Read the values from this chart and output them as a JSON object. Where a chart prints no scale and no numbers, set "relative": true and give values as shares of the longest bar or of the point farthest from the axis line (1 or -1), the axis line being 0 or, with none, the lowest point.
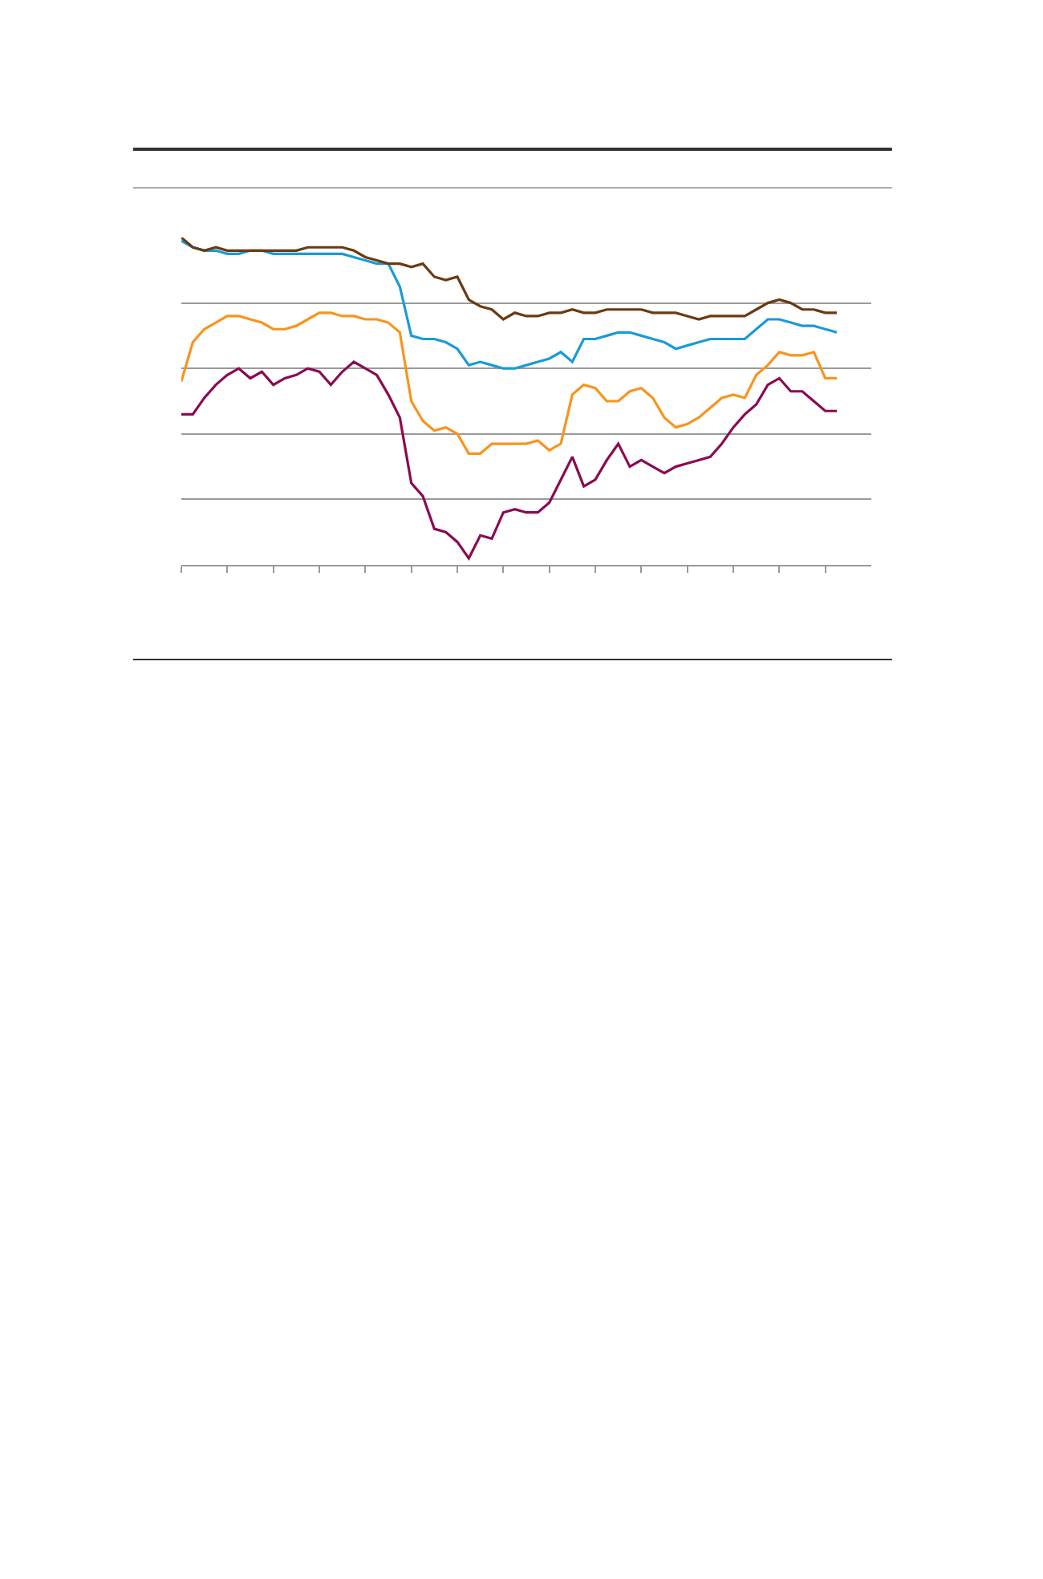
{
  "chart_data": {
    "type": "line",
    "relative": true,
    "grid": "y",
    "marker": "none",
    "line_style": "solid",
    "categories": [
      null,
      null,
      null,
      null,
      null,
      null,
      null,
      null,
      null,
      null,
      null,
      null,
      null,
      null,
      null,
      null,
      null,
      null,
      null,
      null,
      null,
      null,
      null,
      null,
      null,
      null,
      null,
      null,
      null,
      null,
      null,
      null,
      null,
      null,
      null,
      null,
      null,
      null,
      null,
      null,
      null,
      null,
      null,
      null,
      null,
      null,
      null,
      null,
      null,
      null,
      null,
      null,
      null,
      null,
      null,
      null,
      null,
      null
    ],
    "series": [
      {
        "color": "#1a9ad6",
        "values": [
          0.99,
          0.97,
          0.96,
          0.96,
          0.95,
          0.95,
          0.96,
          0.96,
          0.95,
          0.95,
          0.95,
          0.95,
          0.95,
          0.95,
          0.95,
          0.94,
          0.93,
          0.92,
          0.92,
          0.85,
          0.7,
          0.69,
          0.69,
          0.68,
          0.66,
          0.61,
          0.62,
          0.61,
          0.6,
          0.6,
          0.61,
          0.62,
          0.63,
          0.65,
          0.62,
          0.69,
          0.69,
          0.7,
          0.71,
          0.71,
          0.7,
          0.69,
          0.68,
          0.66,
          0.67,
          0.68,
          0.69,
          0.69,
          0.69,
          0.69,
          0.72,
          0.75,
          0.75,
          0.74,
          0.73,
          0.73,
          0.72,
          0.71
        ]
      },
      {
        "color": "#f7941d",
        "values": [
          0.56,
          0.68,
          0.72,
          0.74,
          0.76,
          0.76,
          0.75,
          0.74,
          0.72,
          0.72,
          0.73,
          0.75,
          0.77,
          0.77,
          0.76,
          0.76,
          0.75,
          0.75,
          0.74,
          0.71,
          0.5,
          0.44,
          0.41,
          0.42,
          0.4,
          0.34,
          0.34,
          0.37,
          0.37,
          0.37,
          0.37,
          0.38,
          0.35,
          0.37,
          0.52,
          0.55,
          0.54,
          0.5,
          0.5,
          0.53,
          0.54,
          0.51,
          0.45,
          0.42,
          0.43,
          0.45,
          0.48,
          0.51,
          0.52,
          0.51,
          0.58,
          0.61,
          0.65,
          0.64,
          0.64,
          0.65,
          0.57,
          0.57
        ]
      },
      {
        "color": "#8b0a50",
        "values": [
          0.46,
          0.46,
          0.51,
          0.55,
          0.58,
          0.6,
          0.57,
          0.59,
          0.55,
          0.57,
          0.58,
          0.6,
          0.59,
          0.55,
          0.59,
          0.62,
          0.6,
          0.58,
          0.52,
          0.45,
          0.25,
          0.21,
          0.11,
          0.1,
          0.07,
          0.02,
          0.09,
          0.08,
          0.16,
          0.17,
          0.16,
          0.16,
          0.19,
          0.26,
          0.33,
          0.24,
          0.26,
          0.32,
          0.37,
          0.3,
          0.32,
          0.3,
          0.28,
          0.3,
          0.31,
          0.32,
          0.33,
          0.37,
          0.42,
          0.46,
          0.49,
          0.55,
          0.57,
          0.53,
          0.53,
          0.5,
          0.47,
          0.47
        ]
      },
      {
        "color": "#6b3a11",
        "values": [
          1.0,
          0.97,
          0.96,
          0.97,
          0.96,
          0.96,
          0.96,
          0.96,
          0.96,
          0.96,
          0.96,
          0.97,
          0.97,
          0.97,
          0.97,
          0.96,
          0.94,
          0.93,
          0.92,
          0.92,
          0.91,
          0.92,
          0.88,
          0.87,
          0.88,
          0.81,
          0.79,
          0.78,
          0.75,
          0.77,
          0.76,
          0.76,
          0.77,
          0.77,
          0.78,
          0.77,
          0.77,
          0.78,
          0.78,
          0.78,
          0.78,
          0.77,
          0.77,
          0.77,
          0.76,
          0.75,
          0.76,
          0.76,
          0.76,
          0.76,
          0.78,
          0.8,
          0.81,
          0.8,
          0.78,
          0.78,
          0.77,
          0.77
        ]
      }
    ]
  }
}
